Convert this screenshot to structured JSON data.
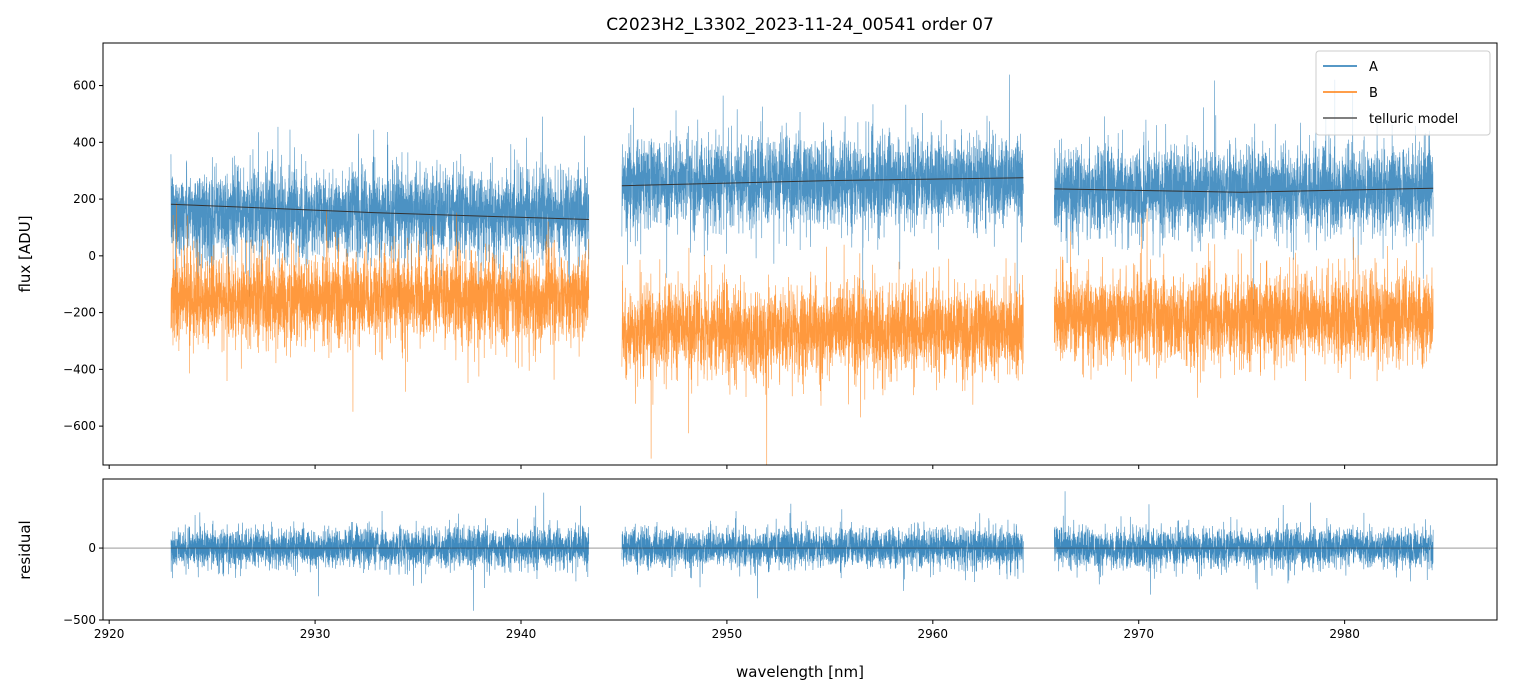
{
  "chart_data": [
    {
      "type": "line",
      "title": "C2023H2_L3302_2023-11-24_00541  order 07",
      "xlabel": "",
      "ylabel": "flux [ADU]",
      "xlim": [
        2919.7,
        2987.4
      ],
      "ylim": [
        -737,
        750
      ],
      "yticks": [
        -600,
        -400,
        -200,
        0,
        200,
        400,
        600
      ],
      "xticks": [
        2920,
        2930,
        2940,
        2950,
        2960,
        2970,
        2980
      ],
      "segments": [
        [
          2923.0,
          2943.3
        ],
        [
          2944.9,
          2964.4
        ],
        [
          2965.9,
          2984.3
        ]
      ],
      "legend": {
        "position": "top-right",
        "entries": [
          "A",
          "B",
          "telluric model"
        ]
      },
      "series": [
        {
          "name": "A",
          "color": "#1f77b4",
          "segment_means": [
            150,
            262,
            232
          ],
          "noise_std": 75
        },
        {
          "name": "B",
          "color": "#ff7f0e",
          "segment_means": [
            -150,
            -262,
            -218
          ],
          "noise_std": 75
        },
        {
          "name": "telluric model",
          "color": "#333333",
          "points": [
            [
              2923.0,
              182
            ],
            [
              2933.0,
              152
            ],
            [
              2943.3,
              128
            ],
            [
              2944.9,
              247
            ],
            [
              2955.0,
              265
            ],
            [
              2964.4,
              275
            ],
            [
              2965.9,
              236
            ],
            [
              2975.0,
              224
            ],
            [
              2984.3,
              238
            ]
          ]
        }
      ]
    },
    {
      "type": "line",
      "xlabel": "wavelength [nm]",
      "ylabel": "residual",
      "xlim": [
        2919.7,
        2987.4
      ],
      "ylim": [
        -500,
        480
      ],
      "yticks": [
        -500,
        0
      ],
      "xticks": [
        2920,
        2930,
        2940,
        2950,
        2960,
        2970,
        2980
      ],
      "series": [
        {
          "name": "residual",
          "color": "#1f77b4",
          "mean": 0,
          "noise_std": 65
        }
      ],
      "reference_line": 0
    }
  ]
}
